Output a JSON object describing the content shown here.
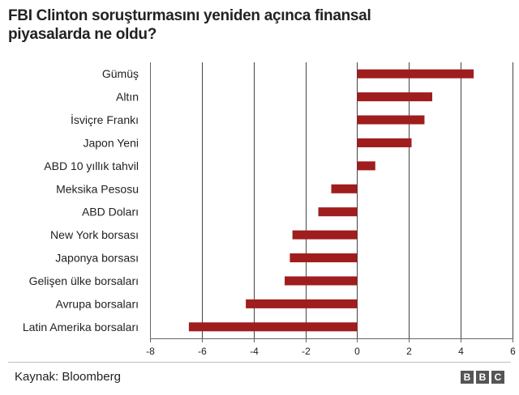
{
  "title": "FBI Clinton soruşturmasını yeniden açınca finansal piyasalarda ne oldu?",
  "source": "Kaynak: Bloomberg",
  "logo": {
    "letters": [
      "B",
      "B",
      "C"
    ]
  },
  "colors": {
    "bar": "#a01d1d",
    "grid": "#444444",
    "text": "#222222"
  },
  "chart_data": {
    "type": "bar",
    "orientation": "horizontal",
    "title": "FBI Clinton soruşturmasını yeniden açınca finansal piyasalarda ne oldu?",
    "xlabel": "",
    "ylabel": "",
    "xlim": [
      -8,
      6
    ],
    "xticks": [
      -8,
      -6,
      -4,
      -2,
      0,
      2,
      4,
      6
    ],
    "grid": "vertical",
    "categories": [
      "Gümüş",
      "Altın",
      "İsviçre Frankı",
      "Japon Yeni",
      "ABD 10 yıllık tahvil",
      "Meksika Pesosu",
      "ABD Doları",
      "New York borsası",
      "Japonya borsası",
      "Gelişen ülke borsaları",
      "Avrupa borsaları",
      "Latin Amerika borsaları"
    ],
    "values": [
      4.5,
      2.9,
      2.6,
      2.1,
      0.7,
      -1.0,
      -1.5,
      -2.5,
      -2.6,
      -2.8,
      -4.3,
      -6.5
    ]
  }
}
